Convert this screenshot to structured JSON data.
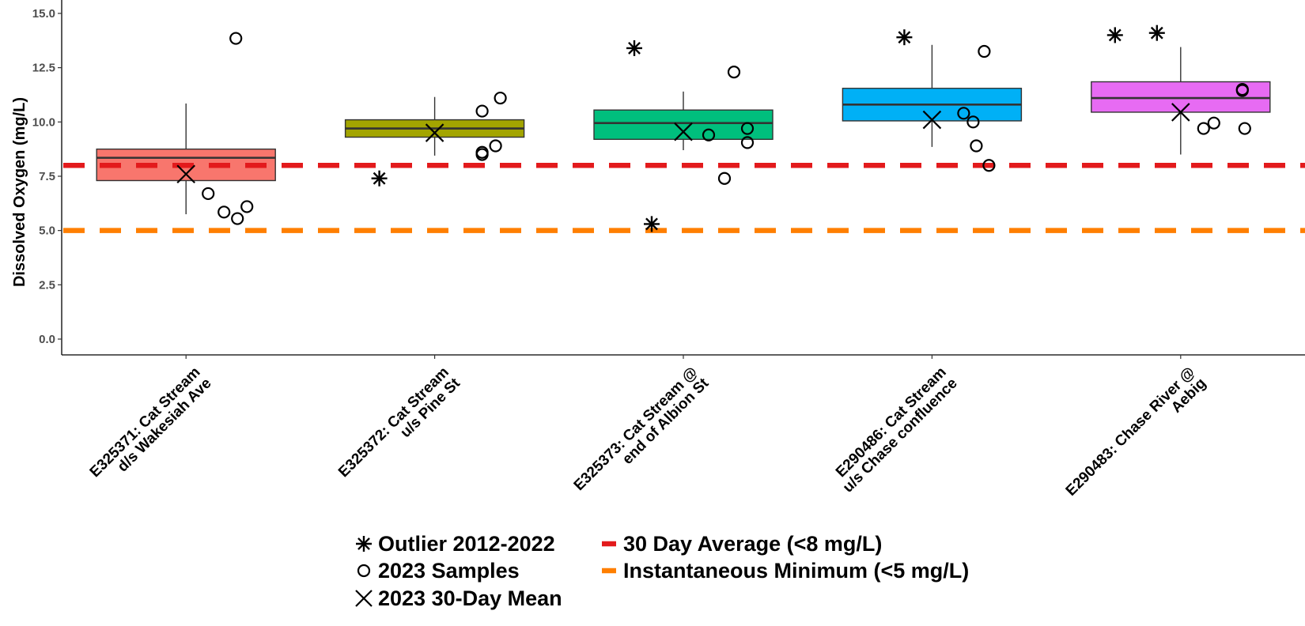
{
  "chart_data": {
    "type": "box",
    "ylabel": "Dissolved Oxygen (mg/L)",
    "xlabel": "",
    "ylim": [
      -0.7,
      16.2
    ],
    "yticks": [
      "0.0",
      "2.5",
      "5.0",
      "7.5",
      "10.0",
      "12.5",
      "15.0"
    ],
    "ytick_values": [
      0,
      2.5,
      5,
      7.5,
      10,
      12.5,
      15
    ],
    "grid": false,
    "categories": [
      {
        "line1": "E325371: Cat Stream",
        "line2": "d/s Wakesiah Ave",
        "color": "#F8766D",
        "q1": 7.3,
        "median": 8.35,
        "q3": 8.75,
        "whisker_low": 5.75,
        "whisker_high": 10.85,
        "mean_30day": 7.6,
        "samples": [
          6.7,
          5.85,
          5.55,
          6.1,
          13.85
        ],
        "outliers": []
      },
      {
        "line1": "E325372: Cat Stream",
        "line2": "u/s Pine St",
        "color": "#A3A500",
        "q1": 9.3,
        "median": 9.7,
        "q3": 10.1,
        "whisker_low": 8.45,
        "whisker_high": 11.15,
        "mean_30day": 9.5,
        "samples": [
          10.5,
          8.5,
          8.6,
          8.9,
          11.1
        ],
        "outliers": [
          7.4
        ]
      },
      {
        "line1": "E325373: Cat Stream @",
        "line2": "end of Albion St",
        "color": "#00BF7D",
        "q1": 9.2,
        "median": 9.95,
        "q3": 10.55,
        "whisker_low": 8.7,
        "whisker_high": 11.4,
        "mean_30day": 9.55,
        "samples": [
          9.4,
          7.4,
          12.3,
          9.7,
          9.05
        ],
        "outliers": [
          13.4,
          5.3
        ]
      },
      {
        "line1": "E290486: Cat Stream",
        "line2": "u/s Chase confluence",
        "color": "#00B0F6",
        "q1": 10.05,
        "median": 10.8,
        "q3": 11.55,
        "whisker_low": 8.85,
        "whisker_high": 13.55,
        "mean_30day": 10.1,
        "samples": [
          10.4,
          10.0,
          8.9,
          8.0,
          13.25
        ],
        "outliers": [
          13.9
        ]
      },
      {
        "line1": "E290483: Chase River @",
        "line2": "Aebig",
        "color": "#E76BF3",
        "q1": 10.45,
        "median": 11.1,
        "q3": 11.85,
        "whisker_low": 8.5,
        "whisker_high": 13.45,
        "mean_30day": 10.45,
        "samples": [
          9.7,
          9.95,
          11.45,
          11.5,
          9.7
        ],
        "outliers": [
          14.0,
          14.1
        ]
      }
    ],
    "reference_lines": [
      {
        "value": 8,
        "color": "#E31A1C",
        "label": "30 Day Average (<8 mg/L)"
      },
      {
        "value": 5,
        "color": "#FF7F00",
        "label": "Instantaneous Minimum (<5 mg/L)"
      }
    ],
    "legend": {
      "placement": "bottom",
      "items": [
        {
          "symbol": "asterisk",
          "label": "Outlier 2012-2022"
        },
        {
          "symbol": "circle",
          "label": "2023 Samples"
        },
        {
          "symbol": "cross",
          "label": "2023 30-Day Mean"
        }
      ]
    }
  }
}
